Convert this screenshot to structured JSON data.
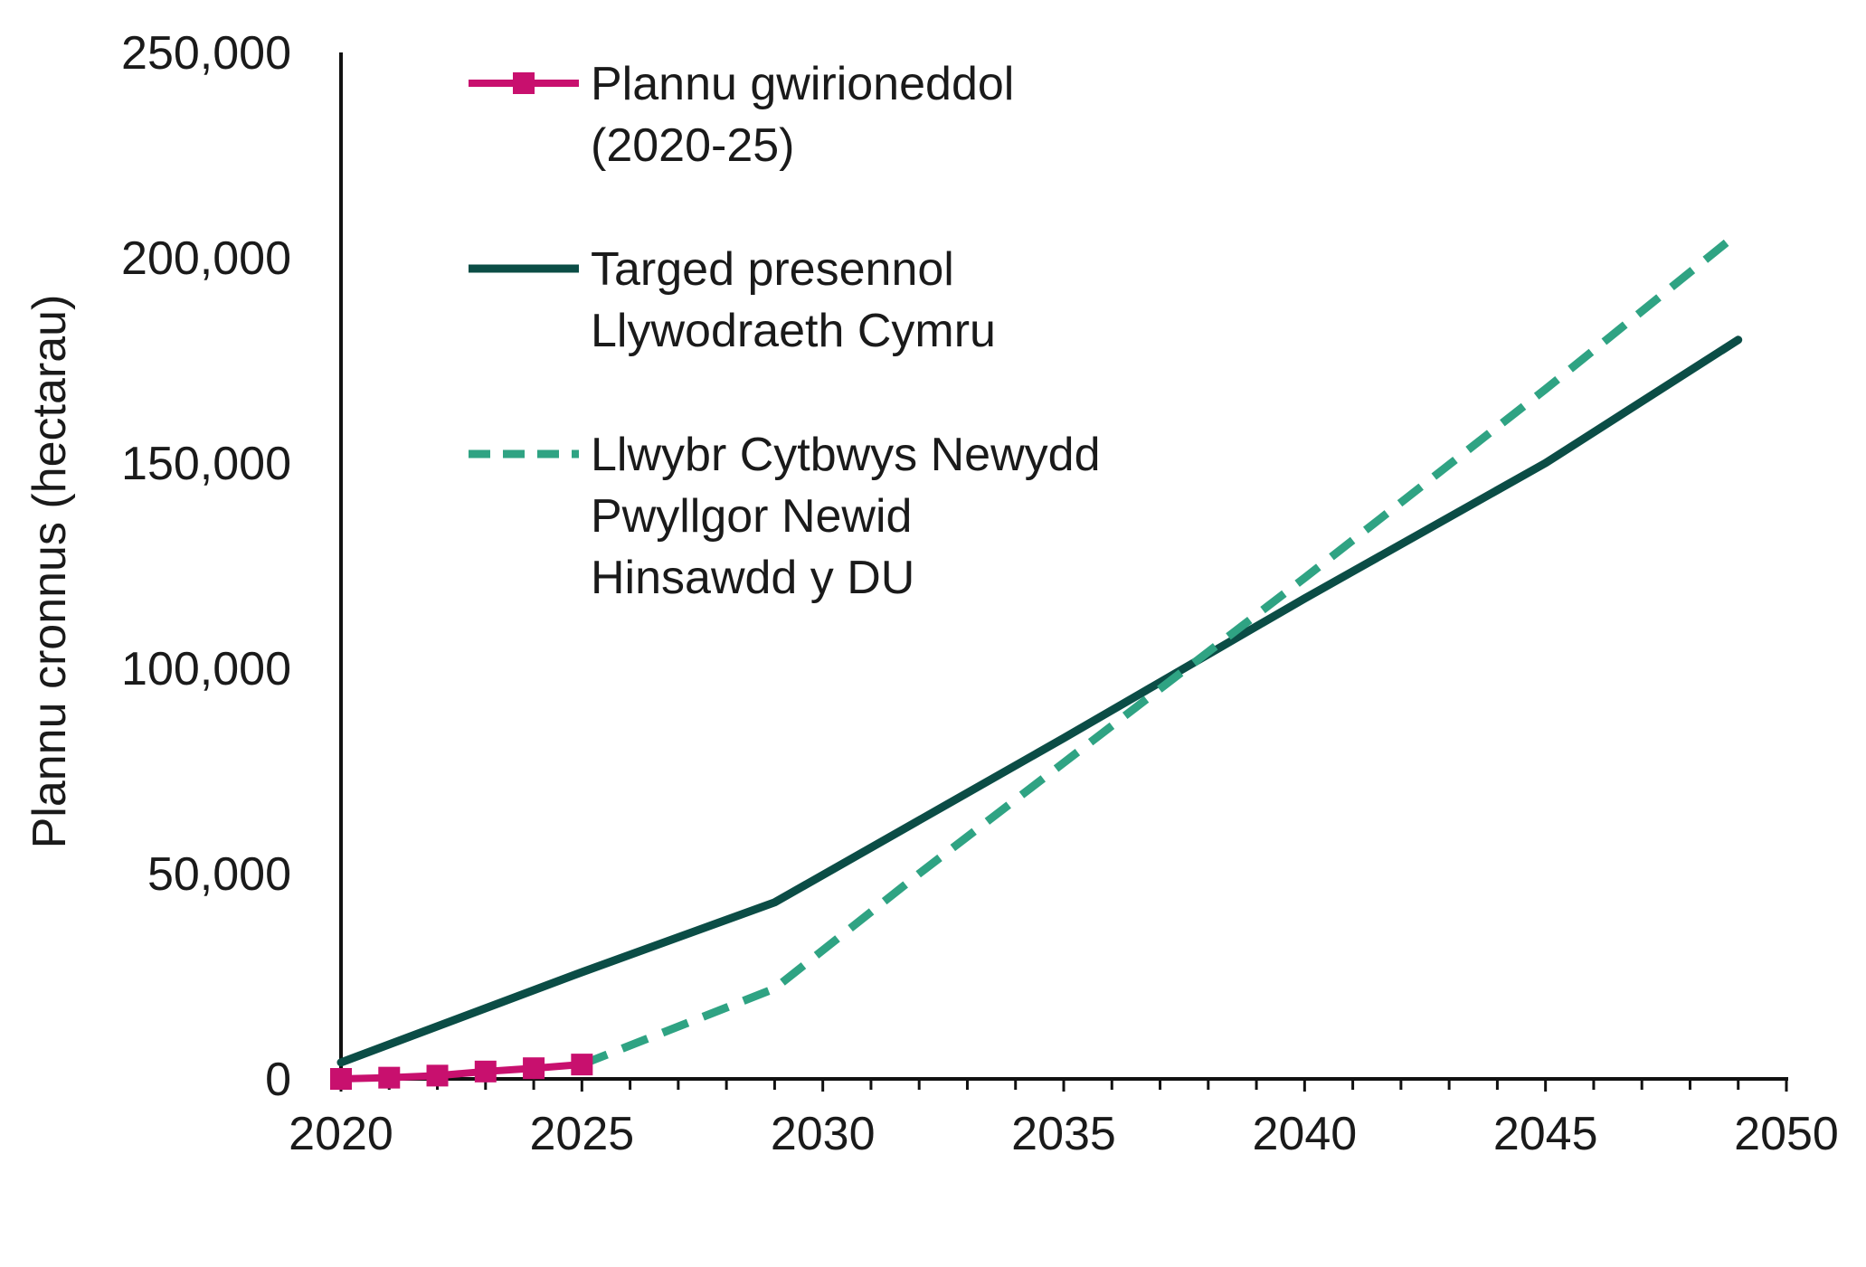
{
  "chart_data": {
    "type": "line",
    "title": "",
    "xlabel": "",
    "ylabel": "Plannu cronnus (hectarau)",
    "xlim": [
      2020,
      2050
    ],
    "ylim": [
      0,
      250000
    ],
    "x_ticks": [
      "2020",
      "2025",
      "2030",
      "2035",
      "2040",
      "2045",
      "2050"
    ],
    "y_ticks": [
      "0",
      "50,000",
      "100,000",
      "150,000",
      "200,000",
      "250,000"
    ],
    "grid": false,
    "legend_position": "top-left",
    "series": [
      {
        "name_lines": [
          "Plannu gwirioneddol",
          "(2020-25)"
        ],
        "style": "solid-markers",
        "color": "#c8106e",
        "points": [
          [
            2020,
            0
          ],
          [
            2021,
            300
          ],
          [
            2022,
            800
          ],
          [
            2023,
            1800
          ],
          [
            2024,
            2600
          ],
          [
            2025,
            3500
          ]
        ]
      },
      {
        "name_lines": [
          "Targed presennol",
          "Llywodraeth Cymru"
        ],
        "style": "solid",
        "color": "#0b4d46",
        "points": [
          [
            2020,
            4000
          ],
          [
            2025,
            26000
          ],
          [
            2029,
            43000
          ],
          [
            2035,
            83000
          ],
          [
            2040,
            117000
          ],
          [
            2045,
            150000
          ],
          [
            2049,
            180000
          ]
        ]
      },
      {
        "name_lines": [
          "Llwybr Cytbwys Newydd",
          "Pwyllgor Newid",
          "Hinsawdd y DU"
        ],
        "style": "dashed",
        "color": "#2fa383",
        "points": [
          [
            2025,
            3500
          ],
          [
            2029,
            22000
          ],
          [
            2032,
            50000
          ],
          [
            2035,
            77000
          ],
          [
            2038,
            104000
          ],
          [
            2040,
            122000
          ],
          [
            2045,
            168000
          ],
          [
            2049,
            206000
          ]
        ]
      }
    ]
  }
}
